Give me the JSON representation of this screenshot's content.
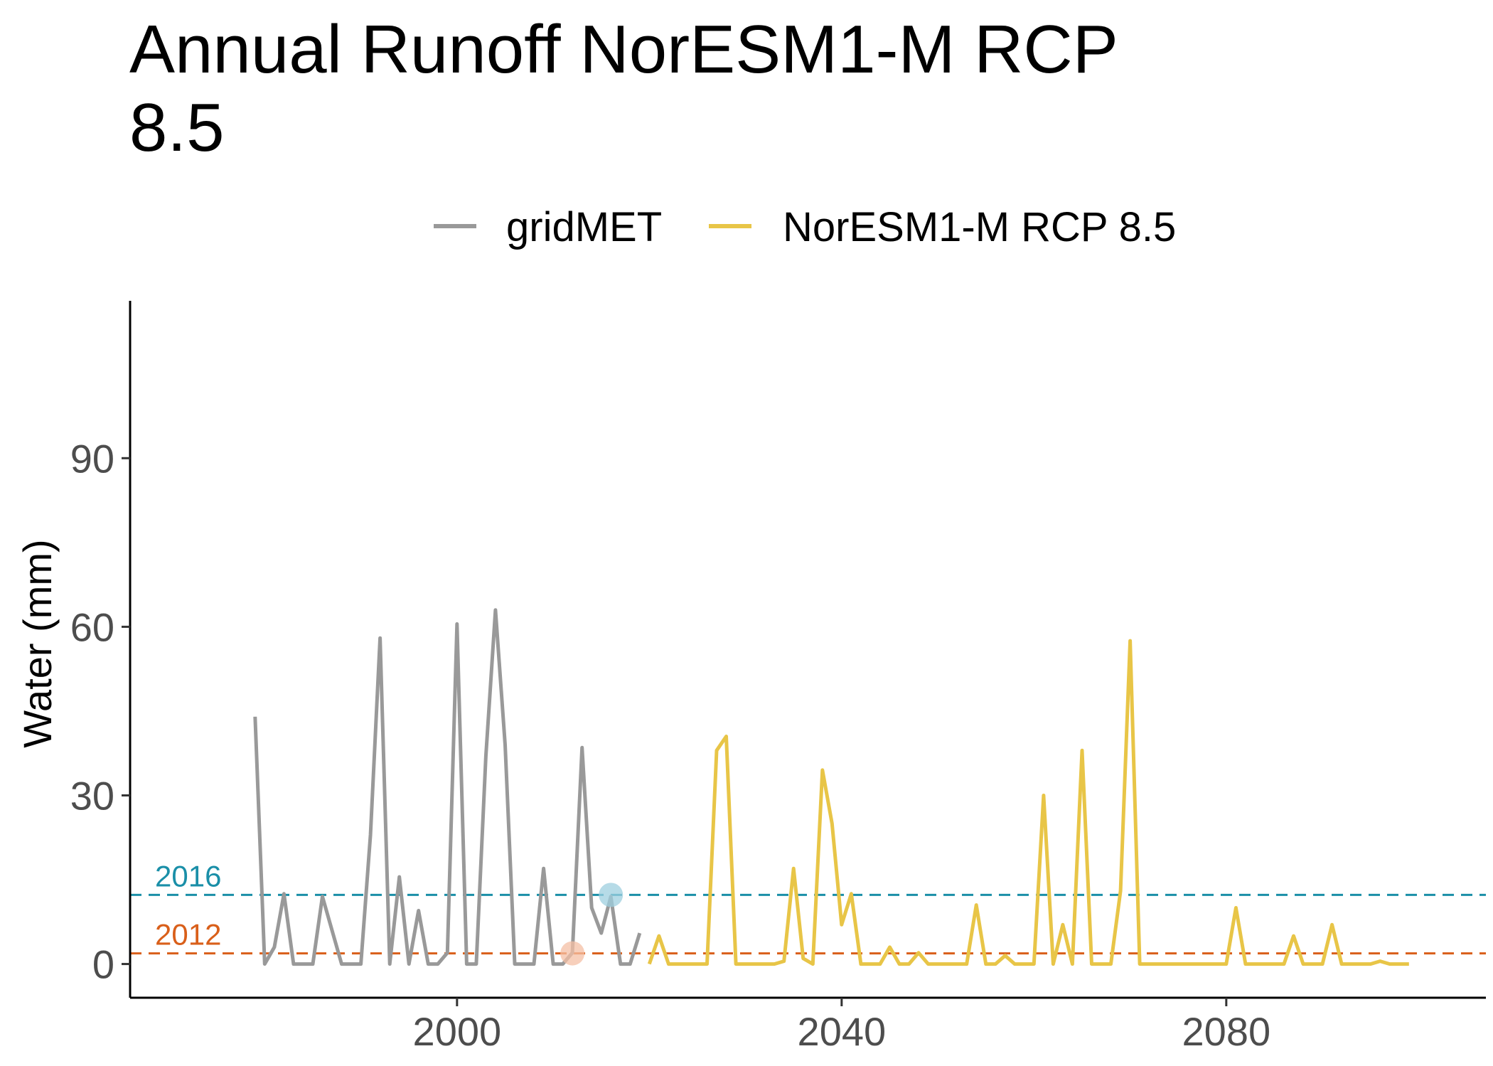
{
  "chart_data": {
    "type": "line",
    "title": "Annual Runoff NorESM1-M RCP 8.5",
    "title_lines": [
      "Annual Runoff NorESM1-M RCP",
      "8.5"
    ],
    "xlabel": "",
    "ylabel": "Water (mm)",
    "xlim": [
      1966,
      2107
    ],
    "ylim": [
      -6,
      118
    ],
    "xticks": [
      2000,
      2040,
      2080
    ],
    "yticks": [
      0,
      30,
      60,
      90
    ],
    "grid": false,
    "legend": {
      "position": "top"
    },
    "series": [
      {
        "name": "gridMET",
        "color": "#999999",
        "x": [
          1979,
          1980,
          1981,
          1982,
          1983,
          1984,
          1985,
          1986,
          1987,
          1988,
          1989,
          1990,
          1991,
          1992,
          1993,
          1994,
          1995,
          1996,
          1997,
          1998,
          1999,
          2000,
          2001,
          2002,
          2003,
          2004,
          2005,
          2006,
          2007,
          2008,
          2009,
          2010,
          2011,
          2012,
          2013,
          2014,
          2015,
          2016,
          2017,
          2018,
          2019
        ],
        "y": [
          44,
          0,
          3,
          12.5,
          0,
          0,
          0,
          12,
          6,
          0,
          0,
          0,
          23,
          58,
          0,
          15.5,
          0,
          9.5,
          0,
          0,
          2,
          60.5,
          0,
          0,
          37,
          63,
          39,
          0,
          0,
          0,
          17,
          0,
          0,
          2,
          38.5,
          10,
          5.5,
          12,
          0,
          0,
          5.5
        ]
      },
      {
        "name": "NorESM1-M RCP 8.5",
        "color": "#E8C547",
        "x": [
          2020,
          2021,
          2022,
          2023,
          2024,
          2025,
          2026,
          2027,
          2028,
          2029,
          2030,
          2031,
          2032,
          2033,
          2034,
          2035,
          2036,
          2037,
          2038,
          2039,
          2040,
          2041,
          2042,
          2043,
          2044,
          2045,
          2046,
          2047,
          2048,
          2049,
          2050,
          2051,
          2052,
          2053,
          2054,
          2055,
          2056,
          2057,
          2058,
          2059,
          2060,
          2061,
          2062,
          2063,
          2064,
          2065,
          2066,
          2067,
          2068,
          2069,
          2070,
          2071,
          2072,
          2073,
          2074,
          2075,
          2076,
          2077,
          2078,
          2079,
          2080,
          2081,
          2082,
          2083,
          2084,
          2085,
          2086,
          2087,
          2088,
          2089,
          2090,
          2091,
          2092,
          2093,
          2094,
          2095,
          2096,
          2097,
          2098,
          2099
        ],
        "y": [
          0,
          5,
          0,
          0,
          0,
          0,
          0,
          38,
          40.5,
          0,
          0,
          0,
          0,
          0,
          0.5,
          17,
          1,
          0,
          34.5,
          25,
          7,
          12.5,
          0,
          0,
          0,
          3,
          0,
          0,
          2,
          0,
          0,
          0,
          0,
          0,
          10.5,
          0,
          0,
          1.5,
          0,
          0,
          0,
          30,
          0,
          7,
          0,
          38,
          0,
          0,
          0,
          13,
          57.5,
          0,
          0,
          0,
          0,
          0,
          0,
          0,
          0,
          0,
          0,
          10,
          0,
          0,
          0,
          0,
          0,
          5,
          0,
          0,
          0,
          7,
          0,
          0,
          0,
          0,
          0.5,
          0,
          0,
          0
        ]
      }
    ],
    "reference_lines": [
      {
        "label": "2016",
        "y": 12.3,
        "color": "#1A8FA8"
      },
      {
        "label": "2012",
        "y": 1.9,
        "color": "#D95F1A"
      }
    ],
    "highlight_points": [
      {
        "x": 2016,
        "y": 12.3,
        "color": "#9ECFDF"
      },
      {
        "x": 2012,
        "y": 1.9,
        "color": "#F4BFA4"
      }
    ]
  }
}
